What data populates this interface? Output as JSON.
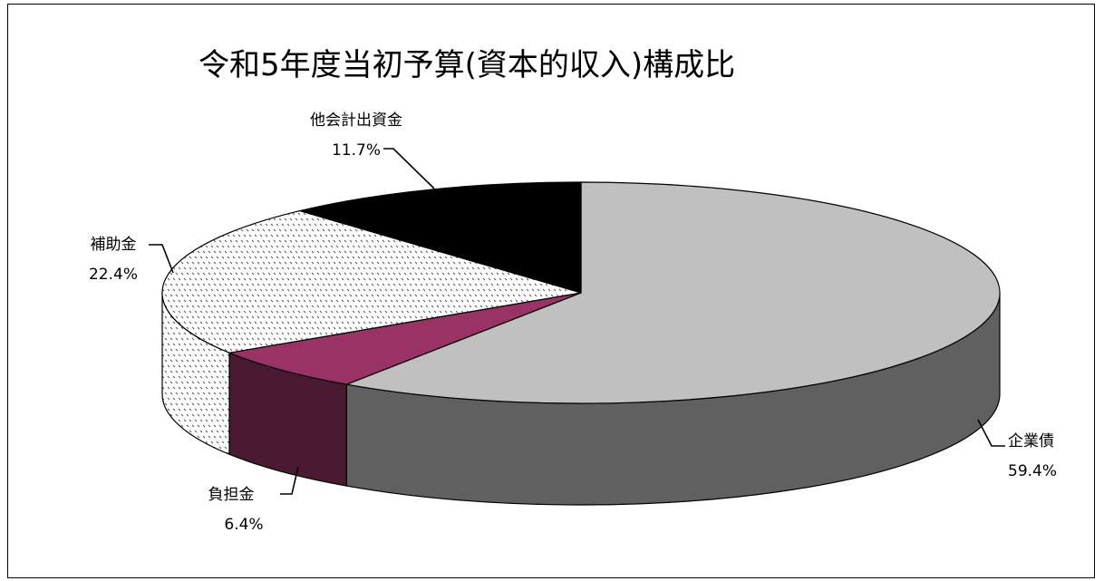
{
  "chart_data": {
    "type": "pie",
    "title": "令和5年度当初予算(資本的収入)構成比",
    "slices": [
      {
        "name": "企業債",
        "percent_label": "59.4%",
        "value": 59.4,
        "top_color": "#c0c0c0",
        "side_color": "#606060",
        "pattern": "solid"
      },
      {
        "name": "負担金",
        "percent_label": "6.4%",
        "value": 6.4,
        "top_color": "#993366",
        "side_color": "#4a1a33",
        "pattern": "solid"
      },
      {
        "name": "補助金",
        "percent_label": "22.4%",
        "value": 22.4,
        "top_color": "#ffffff",
        "side_color": "#ffffff",
        "pattern": "dots"
      },
      {
        "name": "他会計出資金",
        "percent_label": "11.7%",
        "value": 11.7,
        "top_color": "#000000",
        "side_color": "#000000",
        "pattern": "solid"
      }
    ],
    "legend": "none"
  }
}
